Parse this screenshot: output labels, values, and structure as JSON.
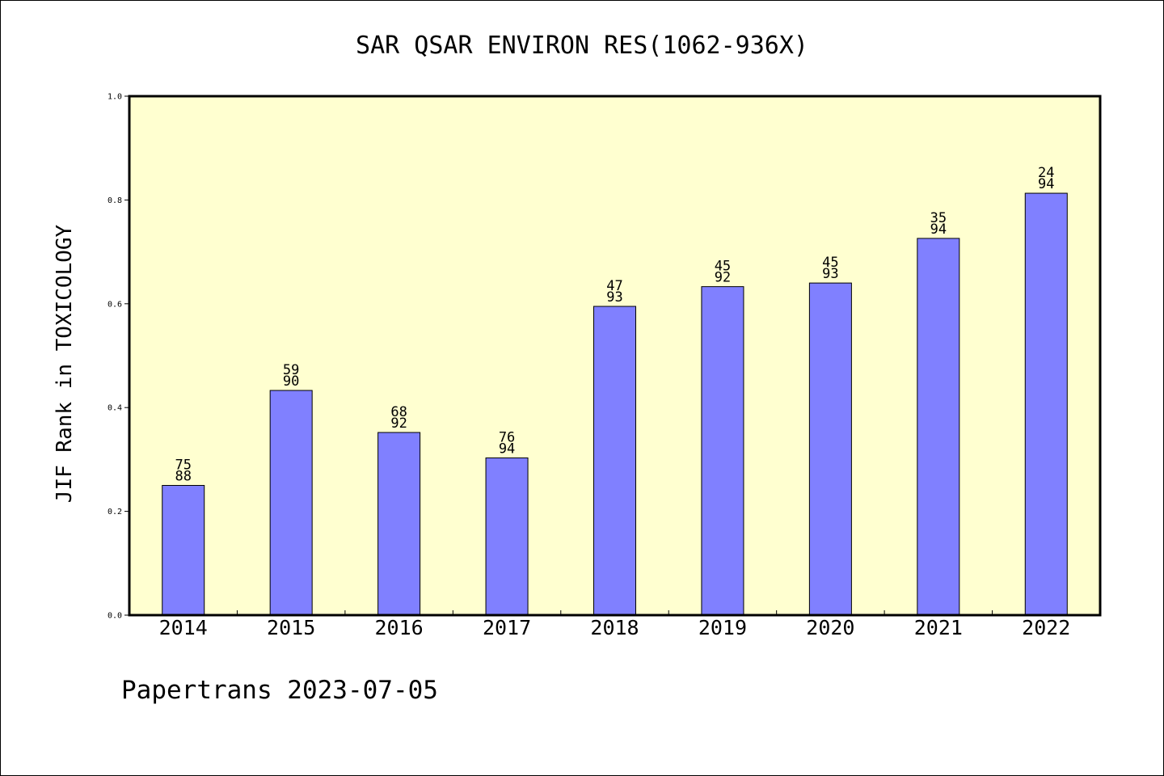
{
  "chart_data": {
    "type": "bar",
    "title": "SAR QSAR ENVIRON RES(1062-936X)",
    "xlabel": "",
    "ylabel": "JIF Rank in TOXICOLOGY",
    "ylim": [
      0,
      1.0
    ],
    "yticks": [
      "0.0",
      "0.2",
      "0.4",
      "0.6",
      "0.8",
      "1.0"
    ],
    "categories": [
      "2014",
      "2015",
      "2016",
      "2017",
      "2018",
      "2019",
      "2020",
      "2021",
      "2022"
    ],
    "values": [
      0.25,
      0.433,
      0.352,
      0.303,
      0.595,
      0.633,
      0.64,
      0.726,
      0.813
    ],
    "rank_labels": [
      {
        "rank": "75",
        "total": "88"
      },
      {
        "rank": "59",
        "total": "90"
      },
      {
        "rank": "68",
        "total": "92"
      },
      {
        "rank": "76",
        "total": "94"
      },
      {
        "rank": "47",
        "total": "93"
      },
      {
        "rank": "45",
        "total": "92"
      },
      {
        "rank": "45",
        "total": "93"
      },
      {
        "rank": "35",
        "total": "94"
      },
      {
        "rank": "24",
        "total": "94"
      }
    ],
    "grid": false,
    "colors": {
      "plot_background": "#ffffd0",
      "bar_fill": "#8080ff",
      "bar_stroke": "#000000"
    }
  },
  "footer": "Papertrans 2023-07-05"
}
